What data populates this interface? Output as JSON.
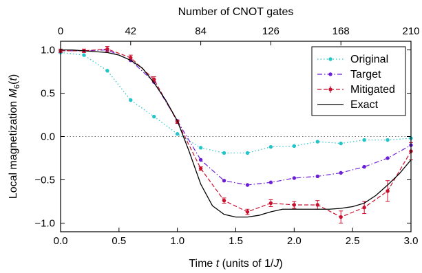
{
  "chart_data": {
    "type": "line",
    "x": [
      0.0,
      0.2,
      0.4,
      0.6,
      0.8,
      1.0,
      1.2,
      1.4,
      1.6,
      1.8,
      2.0,
      2.2,
      2.4,
      2.6,
      2.8,
      3.0
    ],
    "xlim": [
      0,
      3
    ],
    "ylim": [
      -1.1,
      1.1
    ],
    "xlabel_parts": [
      "Time ",
      "t",
      " (units of 1/",
      "J",
      ")"
    ],
    "ylabel_parts": [
      "Local magnetization ",
      "M",
      "6",
      "(",
      "t",
      ")"
    ],
    "x_ticks": [
      0.0,
      0.5,
      1.0,
      1.5,
      2.0,
      2.5,
      3.0
    ],
    "x_tick_labels": [
      "0.0",
      "0.5",
      "1.0",
      "1.5",
      "2.0",
      "2.5",
      "3.0"
    ],
    "y_ticks": [
      1.0,
      0.5,
      0.0,
      -0.5,
      -1.0
    ],
    "y_tick_labels": [
      "1.0",
      "0.5",
      "0.0",
      "−0.5",
      "−1.0"
    ],
    "top_axis": {
      "label": "Number of CNOT gates",
      "ticks": [
        0,
        42,
        84,
        126,
        168,
        210
      ],
      "tick_labels": [
        "0",
        "42",
        "84",
        "126",
        "168",
        "210"
      ],
      "range": [
        0,
        210
      ]
    },
    "zero_line": "dotted",
    "legend_position": "top-right",
    "series": [
      {
        "name": "Original",
        "color": "#22c4c8",
        "style": "dotted",
        "values": [
          0.97,
          0.94,
          0.76,
          0.42,
          0.23,
          0.03,
          -0.13,
          -0.19,
          -0.19,
          -0.12,
          -0.11,
          -0.06,
          -0.08,
          -0.04,
          -0.04,
          -0.02
        ]
      },
      {
        "name": "Target",
        "color": "#6a1fd6",
        "style": "dashdot",
        "values": [
          0.99,
          0.99,
          1.0,
          0.88,
          0.63,
          0.18,
          -0.27,
          -0.51,
          -0.56,
          -0.53,
          -0.48,
          -0.46,
          -0.42,
          -0.35,
          -0.25,
          -0.1
        ]
      },
      {
        "name": "Mitigated",
        "color": "#c8102e",
        "style": "dashed",
        "values": [
          0.99,
          0.99,
          1.01,
          0.91,
          0.66,
          0.17,
          -0.37,
          -0.74,
          -0.87,
          -0.77,
          -0.79,
          -0.79,
          -0.93,
          -0.82,
          -0.63,
          -0.17
        ],
        "errors": [
          0.02,
          0.02,
          0.03,
          0.03,
          0.03,
          0.02,
          0.02,
          0.03,
          0.03,
          0.04,
          0.04,
          0.05,
          0.07,
          0.07,
          0.12,
          0.1
        ]
      },
      {
        "name": "Exact",
        "color": "#000000",
        "style": "solid",
        "x": [
          0.0,
          0.1,
          0.2,
          0.3,
          0.4,
          0.5,
          0.6,
          0.7,
          0.8,
          0.9,
          1.0,
          1.1,
          1.2,
          1.3,
          1.4,
          1.5,
          1.6,
          1.7,
          1.8,
          1.9,
          2.0,
          2.1,
          2.2,
          2.3,
          2.4,
          2.5,
          2.6,
          2.7,
          2.8,
          2.9,
          3.0
        ],
        "values": [
          1.0,
          1.0,
          0.99,
          0.98,
          0.97,
          0.94,
          0.88,
          0.79,
          0.62,
          0.42,
          0.18,
          -0.17,
          -0.55,
          -0.8,
          -0.9,
          -0.93,
          -0.93,
          -0.91,
          -0.87,
          -0.84,
          -0.84,
          -0.84,
          -0.84,
          -0.84,
          -0.83,
          -0.81,
          -0.77,
          -0.68,
          -0.56,
          -0.43,
          -0.27
        ]
      }
    ]
  }
}
